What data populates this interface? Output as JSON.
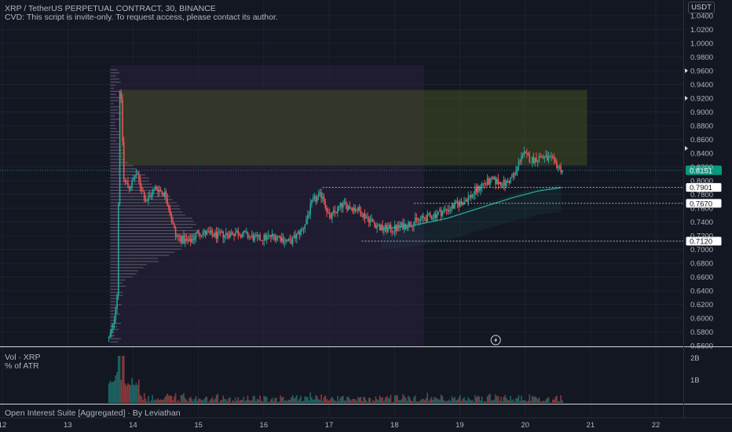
{
  "header": {
    "symbol_line": "XRP / TetherUS PERPETUAL CONTRACT, 30, BINANCE",
    "indicator_line": "CVD: This script is invite-only. To request access, please contact its author.",
    "currency": "USDT"
  },
  "volume_pane": {
    "title": "Vol · XRP",
    "subtitle": "% of ATR",
    "axis_labels": [
      "2B",
      "1B"
    ]
  },
  "oi_pane": {
    "title": "Open Interest Suite [Aggregated] · By Leviathan"
  },
  "colors": {
    "background": "#131722",
    "up": "#26a69a",
    "down": "#ef5350",
    "price_tag": "#26a69a",
    "grid": "#1e222d"
  },
  "chart_data": {
    "type": "candlestick",
    "price_axis": {
      "min": 0.56,
      "max": 1.04,
      "ticks": [
        "1.0400",
        "1.0200",
        "1.0000",
        "0.9800",
        "0.9600",
        "0.9400",
        "0.9200",
        "0.9000",
        "0.8800",
        "0.8600",
        "0.8400",
        "0.8200",
        "0.8000",
        "0.7800",
        "0.7600",
        "0.7400",
        "0.7200",
        "0.7000",
        "0.6800",
        "0.6600",
        "0.6400",
        "0.6200",
        "0.6000",
        "0.5800",
        "0.5600"
      ]
    },
    "time_axis": {
      "ticks": [
        "12",
        "13",
        "14",
        "15",
        "16",
        "17",
        "18",
        "19",
        "20",
        "21",
        "22"
      ]
    },
    "levels": [
      {
        "label": "0.8151",
        "value": 0.8151,
        "style": "current"
      },
      {
        "label": "0.7901",
        "value": 0.7901,
        "style": "level"
      },
      {
        "label": "0.7670",
        "value": 0.767,
        "style": "level"
      },
      {
        "label": "0.7120",
        "value": 0.712,
        "style": "level"
      }
    ],
    "zone": {
      "from_day": 13.8,
      "to_day": 20.95,
      "low": 0.822,
      "high": 0.932
    },
    "shaded_range": {
      "from_day": 13.65,
      "to_day": 18.45
    },
    "candles": {
      "start_day": 13.63,
      "end_day": 20.57,
      "open": 0.57,
      "close": 0.8151,
      "path": [
        [
          13.63,
          0.57
        ],
        [
          13.7,
          0.59
        ],
        [
          13.76,
          0.64
        ],
        [
          13.8,
          0.96
        ],
        [
          13.86,
          0.8
        ],
        [
          13.95,
          0.79
        ],
        [
          14.05,
          0.81
        ],
        [
          14.2,
          0.77
        ],
        [
          14.35,
          0.79
        ],
        [
          14.5,
          0.78
        ],
        [
          14.65,
          0.72
        ],
        [
          14.85,
          0.71
        ],
        [
          15.0,
          0.725
        ],
        [
          15.3,
          0.72
        ],
        [
          15.6,
          0.725
        ],
        [
          15.9,
          0.715
        ],
        [
          16.2,
          0.72
        ],
        [
          16.4,
          0.71
        ],
        [
          16.6,
          0.73
        ],
        [
          16.75,
          0.77
        ],
        [
          16.9,
          0.78
        ],
        [
          17.0,
          0.745
        ],
        [
          17.2,
          0.765
        ],
        [
          17.4,
          0.76
        ],
        [
          17.6,
          0.745
        ],
        [
          17.8,
          0.73
        ],
        [
          18.0,
          0.73
        ],
        [
          18.3,
          0.74
        ],
        [
          18.6,
          0.75
        ],
        [
          18.85,
          0.76
        ],
        [
          19.05,
          0.77
        ],
        [
          19.2,
          0.78
        ],
        [
          19.35,
          0.795
        ],
        [
          19.5,
          0.8
        ],
        [
          19.7,
          0.795
        ],
        [
          19.85,
          0.81
        ],
        [
          19.95,
          0.84
        ],
        [
          20.1,
          0.83
        ],
        [
          20.25,
          0.835
        ],
        [
          20.4,
          0.83
        ],
        [
          20.57,
          0.8151
        ]
      ]
    },
    "moving_average": [
      [
        17.8,
        0.73
      ],
      [
        18.3,
        0.735
      ],
      [
        18.8,
        0.745
      ],
      [
        19.3,
        0.76
      ],
      [
        19.8,
        0.775
      ],
      [
        20.2,
        0.785
      ],
      [
        20.55,
        0.79
      ]
    ],
    "volume_profile_peak_price": 0.725
  }
}
